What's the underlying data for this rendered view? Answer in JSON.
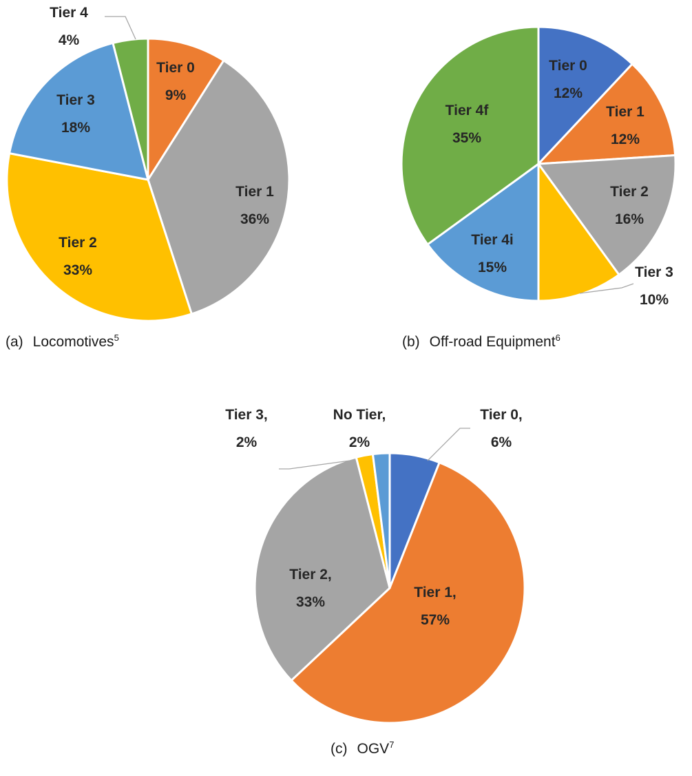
{
  "chart_data": [
    {
      "type": "pie",
      "caption": {
        "tag": "(a)",
        "text": "Locomotives",
        "footnote": "5"
      },
      "slices": [
        {
          "lines": [
            "Tier 0",
            "9%"
          ],
          "value": 9,
          "color": "#ED7D31"
        },
        {
          "lines": [
            "Tier 1",
            "36%"
          ],
          "value": 36,
          "color": "#A5A5A5"
        },
        {
          "lines": [
            "Tier 2",
            "33%"
          ],
          "value": 33,
          "color": "#FFC000"
        },
        {
          "lines": [
            "Tier 3",
            "18%"
          ],
          "value": 18,
          "color": "#5B9BD5"
        },
        {
          "lines": [
            "Tier 4",
            "4%"
          ],
          "value": 4,
          "color": "#70AD47"
        }
      ]
    },
    {
      "type": "pie",
      "caption": {
        "tag": "(b)",
        "text": "Off-road Equipment",
        "footnote": "6"
      },
      "slices": [
        {
          "lines": [
            "Tier 0",
            "12%"
          ],
          "value": 12,
          "color": "#4472C4"
        },
        {
          "lines": [
            "Tier 1",
            "12%"
          ],
          "value": 12,
          "color": "#ED7D31"
        },
        {
          "lines": [
            "Tier 2",
            "16%"
          ],
          "value": 16,
          "color": "#A5A5A5"
        },
        {
          "lines": [
            "Tier 3",
            "10%"
          ],
          "value": 10,
          "color": "#FFC000"
        },
        {
          "lines": [
            "Tier 4i",
            "15%"
          ],
          "value": 15,
          "color": "#5B9BD5"
        },
        {
          "lines": [
            "Tier 4f",
            "35%"
          ],
          "value": 35,
          "color": "#70AD47"
        }
      ]
    },
    {
      "type": "pie",
      "caption": {
        "tag": "(c)",
        "text": "OGV",
        "footnote": "7"
      },
      "slices": [
        {
          "lines": [
            "Tier 0,",
            "6%"
          ],
          "value": 6,
          "color": "#4472C4"
        },
        {
          "lines": [
            "Tier 1,",
            "57%"
          ],
          "value": 57,
          "color": "#ED7D31"
        },
        {
          "lines": [
            "Tier 2,",
            "33%"
          ],
          "value": 33,
          "color": "#A5A5A5"
        },
        {
          "lines": [
            "Tier 3,",
            "2%"
          ],
          "value": 2,
          "color": "#FFC000"
        },
        {
          "lines": [
            "No Tier,",
            "2%"
          ],
          "value": 2,
          "color": "#5B9BD5"
        }
      ]
    }
  ]
}
